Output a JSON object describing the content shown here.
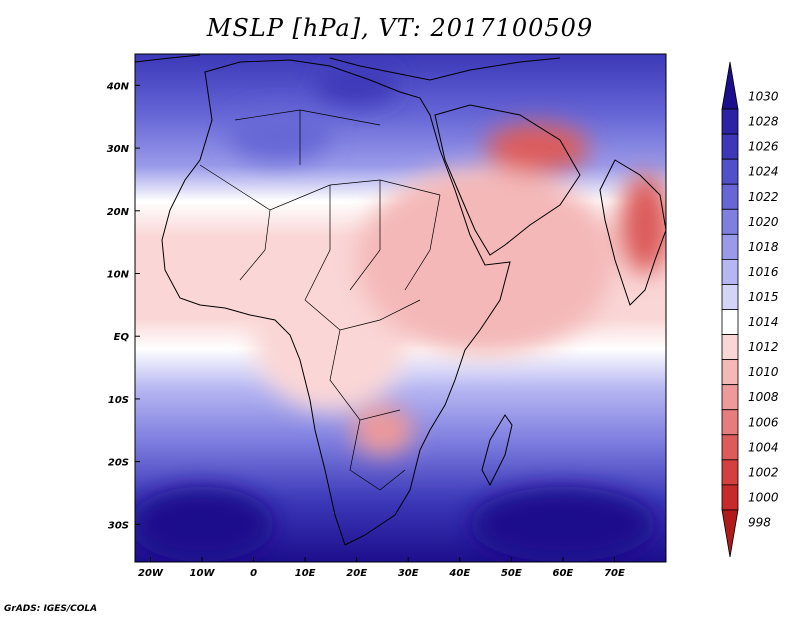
{
  "title": "MSLP [hPa], VT: 2017100509",
  "credit": "GrADS: IGES/COLA",
  "map": {
    "lon_range": [
      -23,
      80
    ],
    "lat_range": [
      -36,
      45
    ],
    "x_ticks": [
      {
        "lon": -20,
        "label": "20W"
      },
      {
        "lon": -10,
        "label": "10W"
      },
      {
        "lon": 0,
        "label": "0"
      },
      {
        "lon": 10,
        "label": "10E"
      },
      {
        "lon": 20,
        "label": "20E"
      },
      {
        "lon": 30,
        "label": "30E"
      },
      {
        "lon": 40,
        "label": "40E"
      },
      {
        "lon": 50,
        "label": "50E"
      },
      {
        "lon": 60,
        "label": "60E"
      },
      {
        "lon": 70,
        "label": "70E"
      }
    ],
    "y_ticks": [
      {
        "lat": 40,
        "label": "40N"
      },
      {
        "lat": 30,
        "label": "30N"
      },
      {
        "lat": 20,
        "label": "20N"
      },
      {
        "lat": 10,
        "label": "10N"
      },
      {
        "lat": 0,
        "label": "EQ"
      },
      {
        "lat": -10,
        "label": "10S"
      },
      {
        "lat": -20,
        "label": "20S"
      },
      {
        "lat": -30,
        "label": "30S"
      }
    ]
  },
  "colorbar": {
    "levels": [
      {
        "label": "1030",
        "color": "#1d0e8c"
      },
      {
        "label": "1028",
        "color": "#2c22a4"
      },
      {
        "label": "1026",
        "color": "#3c38b8"
      },
      {
        "label": "1024",
        "color": "#5050c8"
      },
      {
        "label": "1022",
        "color": "#6666d6"
      },
      {
        "label": "1020",
        "color": "#7f7fe0"
      },
      {
        "label": "1018",
        "color": "#9a9aea"
      },
      {
        "label": "1016",
        "color": "#b6b6f2"
      },
      {
        "label": "1015",
        "color": "#d4d4f8"
      },
      {
        "label": "1014",
        "color": "#ffffff"
      },
      {
        "label": "1012",
        "color": "#fad6d6"
      },
      {
        "label": "1010",
        "color": "#f4b8b8"
      },
      {
        "label": "1008",
        "color": "#ee9a9a"
      },
      {
        "label": "1006",
        "color": "#e67c7c"
      },
      {
        "label": "1004",
        "color": "#dc5c5c"
      },
      {
        "label": "1002",
        "color": "#d24040"
      },
      {
        "label": "1000",
        "color": "#c62a2a"
      },
      {
        "label": "998",
        "color": "#b01a1a"
      }
    ]
  },
  "field_blobs": [
    {
      "lon": -10,
      "lat": -30,
      "rx": 14,
      "ry": 6,
      "color": "#1d0e8c"
    },
    {
      "lon": 60,
      "lat": -30,
      "rx": 18,
      "ry": 6,
      "color": "#1d0e8c"
    },
    {
      "lon": 20,
      "lat": 40,
      "rx": 8,
      "ry": 3,
      "color": "#3c38b8"
    },
    {
      "lon": 5,
      "lat": 32,
      "rx": 10,
      "ry": 4,
      "color": "#6666d6"
    },
    {
      "lon": 15,
      "lat": 0,
      "rx": 15,
      "ry": 12,
      "color": "#fad6d6"
    },
    {
      "lon": 45,
      "lat": 12,
      "rx": 25,
      "ry": 15,
      "color": "#f4b8b8"
    },
    {
      "lon": 55,
      "lat": 30,
      "rx": 10,
      "ry": 4,
      "color": "#dc5c5c"
    },
    {
      "lon": 76,
      "lat": 18,
      "rx": 5,
      "ry": 8,
      "color": "#dc5c5c"
    },
    {
      "lon": 25,
      "lat": -15,
      "rx": 6,
      "ry": 4,
      "color": "#ee9a9a"
    }
  ]
}
